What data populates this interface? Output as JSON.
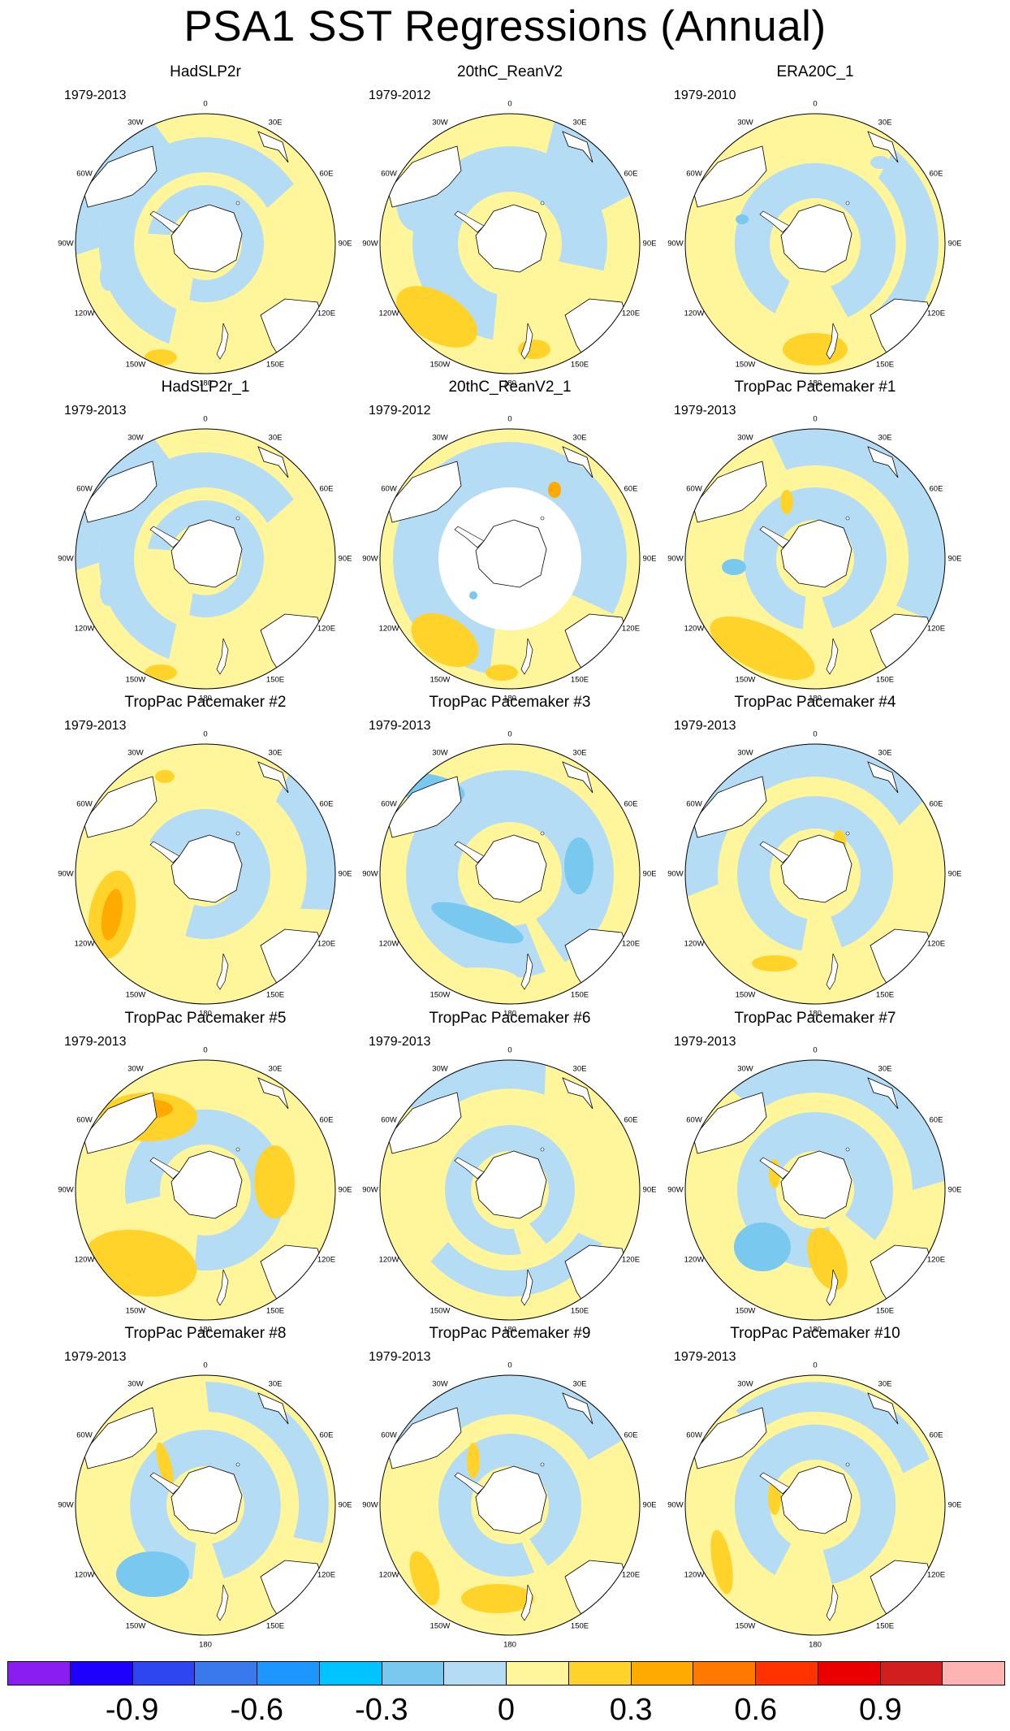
{
  "title": "PSA1 SST Regressions (Annual)",
  "lon_labels": [
    "0",
    "30E",
    "60E",
    "90E",
    "120E",
    "150E",
    "180",
    "150W",
    "120W",
    "90W",
    "60W",
    "30W"
  ],
  "panels": [
    {
      "title": "HadSLP2r",
      "period": "1979-2013",
      "pattern": "a"
    },
    {
      "title": "20thC_ReanV2",
      "period": "1979-2012",
      "pattern": "b"
    },
    {
      "title": "ERA20C_1",
      "period": "1979-2010",
      "pattern": "c"
    },
    {
      "title": "HadSLP2r_1",
      "period": "1979-2013",
      "pattern": "a"
    },
    {
      "title": "20thC_ReanV2_1",
      "period": "1979-2012",
      "pattern": "masked"
    },
    {
      "title": "TropPac Pacemaker #1",
      "period": "1979-2013",
      "pattern": "d"
    },
    {
      "title": "TropPac Pacemaker #2",
      "period": "1979-2013",
      "pattern": "e"
    },
    {
      "title": "TropPac Pacemaker #3",
      "period": "1979-2013",
      "pattern": "f"
    },
    {
      "title": "TropPac Pacemaker #4",
      "period": "1979-2013",
      "pattern": "g"
    },
    {
      "title": "TropPac Pacemaker #5",
      "period": "1979-2013",
      "pattern": "h"
    },
    {
      "title": "TropPac Pacemaker #6",
      "period": "1979-2013",
      "pattern": "i"
    },
    {
      "title": "TropPac Pacemaker #7",
      "period": "1979-2013",
      "pattern": "j"
    },
    {
      "title": "TropPac Pacemaker #8",
      "period": "1979-2013",
      "pattern": "k"
    },
    {
      "title": "TropPac Pacemaker #9",
      "period": "1979-2013",
      "pattern": "l"
    },
    {
      "title": "TropPac Pacemaker #10",
      "period": "1979-2013",
      "pattern": "m"
    }
  ],
  "colorbar": {
    "colors": [
      "#8a1ef0",
      "#1e00ff",
      "#2e46f0",
      "#3a78ee",
      "#1e96ff",
      "#00c3ff",
      "#78c8f0",
      "#b4dcf4",
      "#fff59a",
      "#ffd32a",
      "#ffaa00",
      "#ff7800",
      "#ff3200",
      "#eb0000",
      "#d21e1e",
      "#ffb4b4"
    ],
    "labels": [
      "-0.9",
      "-0.6",
      "-0.3",
      "0",
      "0.3",
      "0.6",
      "0.9"
    ]
  },
  "colors": {
    "neg_light": "#b4dcf4",
    "neg_mid": "#78c8f0",
    "pos_light": "#fff59a",
    "pos_mid": "#ffd32a",
    "pos_strong": "#ffaa00",
    "land": "#ffffff",
    "outline": "#000000"
  }
}
